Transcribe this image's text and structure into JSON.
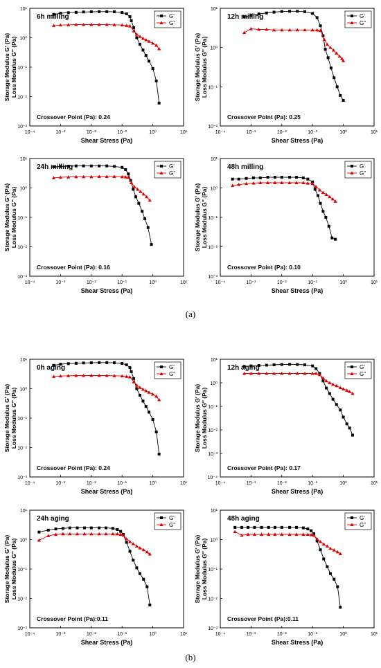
{
  "figure": {
    "caption_a": "(a)",
    "caption_b": "(b)"
  },
  "legend": {
    "g1": "G'",
    "g2": "G''"
  },
  "colors": {
    "storage": "#000000",
    "loss": "#e00000"
  },
  "chart_data": [
    {
      "type": "line",
      "xscale": "log",
      "yscale": "log",
      "title": "6h milling",
      "xlabel": "Shear Stress (Pa)",
      "ylabel": [
        "Storage Modulus G' (Pa)",
        "Loss Modulus G'' (Pa)"
      ],
      "xlim": [
        0.0001,
        10
      ],
      "ylim": [
        0.001,
        10
      ],
      "x_ticks": [
        "10⁻⁴",
        "10⁻³",
        "10⁻²",
        "10⁻¹",
        "10⁰",
        "10¹"
      ],
      "y_ticks": [
        "10⁻³",
        "10⁻²",
        "10⁻¹",
        "10⁰",
        "10¹"
      ],
      "annotation": "Crossover Point (Pa): 0.24",
      "legend_position": "top-right",
      "series": [
        {
          "name": "G'",
          "marker": "square",
          "x": [
            0.0006,
            0.001,
            0.0018,
            0.0032,
            0.0056,
            0.01,
            0.018,
            0.032,
            0.056,
            0.1,
            0.14,
            0.18,
            0.2,
            0.24,
            0.3,
            0.38,
            0.48,
            0.6,
            0.75,
            1.0,
            1.3,
            1.6
          ],
          "y": [
            6.2,
            6.8,
            7.1,
            7.3,
            7.5,
            7.6,
            7.7,
            7.7,
            7.6,
            7.2,
            6.5,
            5.2,
            3.8,
            2.2,
            1.0,
            0.6,
            0.38,
            0.25,
            0.16,
            0.09,
            0.034,
            0.006
          ]
        },
        {
          "name": "G''",
          "marker": "triangle",
          "x": [
            0.0006,
            0.001,
            0.0018,
            0.0032,
            0.0056,
            0.01,
            0.018,
            0.032,
            0.056,
            0.1,
            0.14,
            0.18,
            0.24,
            0.3,
            0.38,
            0.48,
            0.6,
            0.75,
            1.0,
            1.3,
            1.6
          ],
          "y": [
            2.6,
            2.7,
            2.75,
            2.8,
            2.8,
            2.8,
            2.8,
            2.8,
            2.75,
            2.7,
            2.6,
            2.5,
            1.7,
            1.3,
            1.1,
            0.95,
            0.85,
            0.75,
            0.65,
            0.55,
            0.42
          ]
        }
      ]
    },
    {
      "type": "line",
      "xscale": "log",
      "yscale": "log",
      "title": "12h milling",
      "xlabel": "Shear Stress (Pa)",
      "ylabel": [
        "Storage Modulus G' (Pa)",
        "Loss Modulus G'' (Pa)"
      ],
      "xlim": [
        0.0001,
        10
      ],
      "ylim": [
        0.01,
        10
      ],
      "x_ticks": [
        "10⁻⁴",
        "10⁻³",
        "10⁻²",
        "10⁻¹",
        "10⁰",
        "10¹"
      ],
      "y_ticks": [
        "10⁻²",
        "10⁻¹",
        "10⁰",
        "10¹"
      ],
      "annotation": "Crossover Point (Pa): 0.25",
      "legend_position": "top-right",
      "series": [
        {
          "name": "G'",
          "marker": "square",
          "x": [
            0.0006,
            0.001,
            0.0018,
            0.0032,
            0.0056,
            0.01,
            0.018,
            0.032,
            0.056,
            0.1,
            0.14,
            0.18,
            0.22,
            0.26,
            0.32,
            0.4,
            0.5,
            0.63,
            0.8,
            1.0
          ],
          "y": [
            6.0,
            6.6,
            7.2,
            7.6,
            8.0,
            8.3,
            8.4,
            8.4,
            8.2,
            7.4,
            5.8,
            3.6,
            2.0,
            0.9,
            0.55,
            0.3,
            0.17,
            0.1,
            0.06,
            0.045
          ]
        },
        {
          "name": "G''",
          "marker": "triangle",
          "x": [
            0.0006,
            0.001,
            0.0018,
            0.0032,
            0.0056,
            0.01,
            0.018,
            0.032,
            0.056,
            0.1,
            0.14,
            0.18,
            0.24,
            0.3,
            0.38,
            0.48,
            0.6,
            0.75,
            0.9,
            1.0
          ],
          "y": [
            2.4,
            3.0,
            2.9,
            2.9,
            2.8,
            2.8,
            2.8,
            2.8,
            2.8,
            2.8,
            2.8,
            2.7,
            1.6,
            1.2,
            1.0,
            0.85,
            0.72,
            0.6,
            0.52,
            0.46
          ]
        }
      ]
    },
    {
      "type": "line",
      "xscale": "log",
      "yscale": "log",
      "title": "24h milling",
      "xlabel": "Shear Stress (Pa)",
      "ylabel": [
        "Storage Modulus G' (Pa)",
        "Loss Modulus G'' (Pa)"
      ],
      "xlim": [
        0.0001,
        10
      ],
      "ylim": [
        0.001,
        10
      ],
      "x_ticks": [
        "10⁻⁴",
        "10⁻³",
        "10⁻²",
        "10⁻¹",
        "10⁰",
        "10¹"
      ],
      "y_ticks": [
        "10⁻³",
        "10⁻²",
        "10⁻¹",
        "10⁰",
        "10¹"
      ],
      "annotation": "Crossover Point (Pa): 0.16",
      "legend_position": "top-right",
      "series": [
        {
          "name": "G'",
          "marker": "square",
          "x": [
            0.0006,
            0.001,
            0.0018,
            0.0032,
            0.0056,
            0.01,
            0.018,
            0.032,
            0.056,
            0.1,
            0.13,
            0.16,
            0.19,
            0.23,
            0.28,
            0.35,
            0.45,
            0.55,
            0.7,
            0.9
          ],
          "y": [
            5.2,
            5.4,
            5.5,
            5.6,
            5.6,
            5.6,
            5.6,
            5.6,
            5.4,
            5.0,
            4.2,
            3.0,
            1.8,
            0.9,
            0.5,
            0.3,
            0.16,
            0.09,
            0.045,
            0.012
          ]
        },
        {
          "name": "G''",
          "marker": "triangle",
          "x": [
            0.0006,
            0.001,
            0.0018,
            0.0032,
            0.0056,
            0.01,
            0.018,
            0.032,
            0.056,
            0.1,
            0.13,
            0.16,
            0.2,
            0.25,
            0.32,
            0.4,
            0.5,
            0.63,
            0.8
          ],
          "y": [
            2.2,
            2.3,
            2.35,
            2.4,
            2.4,
            2.4,
            2.45,
            2.45,
            2.45,
            2.4,
            2.35,
            2.3,
            1.5,
            1.1,
            0.9,
            0.75,
            0.62,
            0.5,
            0.38
          ]
        }
      ]
    },
    {
      "type": "line",
      "xscale": "log",
      "yscale": "log",
      "title": "48h milling",
      "xlabel": "Shear Stress (Pa)",
      "ylabel": [
        "Storage Modulus G' (Pa)",
        "Loss Modulus G'' (Pa)"
      ],
      "xlim": [
        0.0001,
        10
      ],
      "ylim": [
        0.001,
        10
      ],
      "x_ticks": [
        "10⁻⁴",
        "10⁻³",
        "10⁻²",
        "10⁻¹",
        "10⁰",
        "10¹"
      ],
      "y_ticks": [
        "10⁻³",
        "10⁻²",
        "10⁻¹",
        "10⁰",
        "10¹"
      ],
      "annotation": "Crossover Point (Pa): 0.10",
      "legend_position": "top-right",
      "series": [
        {
          "name": "G'",
          "marker": "square",
          "x": [
            0.00025,
            0.0004,
            0.0007,
            0.0012,
            0.002,
            0.0035,
            0.006,
            0.01,
            0.018,
            0.03,
            0.05,
            0.07,
            0.1,
            0.12,
            0.15,
            0.18,
            0.22,
            0.27,
            0.34,
            0.43,
            0.55
          ],
          "y": [
            2.0,
            2.0,
            2.1,
            2.2,
            2.2,
            2.3,
            2.3,
            2.3,
            2.3,
            2.3,
            2.2,
            2.0,
            1.6,
            0.9,
            0.55,
            0.3,
            0.16,
            0.1,
            0.05,
            0.02,
            0.018
          ]
        },
        {
          "name": "G''",
          "marker": "triangle",
          "x": [
            0.00025,
            0.0004,
            0.0007,
            0.0012,
            0.002,
            0.0035,
            0.006,
            0.01,
            0.018,
            0.03,
            0.05,
            0.07,
            0.1,
            0.13,
            0.17,
            0.22,
            0.28,
            0.36,
            0.45,
            0.55
          ],
          "y": [
            1.2,
            1.3,
            1.4,
            1.45,
            1.5,
            1.5,
            1.5,
            1.5,
            1.5,
            1.5,
            1.5,
            1.45,
            1.4,
            1.1,
            0.85,
            0.7,
            0.6,
            0.5,
            0.42,
            0.35
          ]
        }
      ]
    },
    {
      "type": "line",
      "xscale": "log",
      "yscale": "log",
      "title": "0h aging",
      "xlabel": "Shear Stress (Pa)",
      "ylabel": [
        "Storage Modulus G' (Pa)",
        "Loss Modulus G'' (Pa)"
      ],
      "xlim": [
        0.0001,
        10
      ],
      "ylim": [
        0.001,
        10
      ],
      "x_ticks": [
        "10⁻⁴",
        "10⁻³",
        "10⁻²",
        "10⁻¹",
        "10⁰",
        "10¹"
      ],
      "y_ticks": [
        "10⁻³",
        "10⁻²",
        "10⁻¹",
        "10⁰",
        "10¹"
      ],
      "annotation": "Crossover Point (Pa): 0.24",
      "legend_position": "top-right",
      "series": [
        {
          "name": "G'",
          "marker": "square",
          "x": [
            0.0006,
            0.001,
            0.0018,
            0.0032,
            0.0056,
            0.01,
            0.018,
            0.032,
            0.056,
            0.1,
            0.14,
            0.18,
            0.2,
            0.24,
            0.3,
            0.38,
            0.48,
            0.6,
            0.75,
            1.0,
            1.3,
            1.6
          ],
          "y": [
            6.2,
            6.8,
            7.1,
            7.3,
            7.5,
            7.6,
            7.7,
            7.7,
            7.6,
            7.2,
            6.5,
            5.2,
            3.8,
            2.2,
            1.0,
            0.6,
            0.38,
            0.25,
            0.16,
            0.09,
            0.034,
            0.006
          ]
        },
        {
          "name": "G''",
          "marker": "triangle",
          "x": [
            0.0006,
            0.001,
            0.0018,
            0.0032,
            0.0056,
            0.01,
            0.018,
            0.032,
            0.056,
            0.1,
            0.14,
            0.18,
            0.24,
            0.3,
            0.38,
            0.48,
            0.6,
            0.75,
            1.0,
            1.3,
            1.6
          ],
          "y": [
            2.6,
            2.7,
            2.75,
            2.8,
            2.8,
            2.8,
            2.8,
            2.8,
            2.75,
            2.7,
            2.6,
            2.5,
            1.7,
            1.3,
            1.1,
            0.95,
            0.85,
            0.75,
            0.65,
            0.55,
            0.42
          ]
        }
      ]
    },
    {
      "type": "line",
      "xscale": "log",
      "yscale": "log",
      "title": "12h aging",
      "xlabel": "Shear Stress (Pa)",
      "ylabel": [
        "Storage Modulus G' (Pa)",
        "Loss Modulus G'' (Pa)"
      ],
      "xlim": [
        0.0001,
        10
      ],
      "ylim": [
        0.0001,
        10
      ],
      "x_ticks": [
        "10⁻⁴",
        "10⁻³",
        "10⁻²",
        "10⁻¹",
        "10⁰",
        "10¹"
      ],
      "y_ticks": [
        "10⁻⁴",
        "10⁻³",
        "10⁻²",
        "10⁻¹",
        "10⁰",
        "10¹"
      ],
      "annotation": "Crossover Point (Pa): 0.17",
      "legend_position": "top-right",
      "series": [
        {
          "name": "G'",
          "marker": "square",
          "x": [
            0.0006,
            0.001,
            0.0018,
            0.0032,
            0.0056,
            0.01,
            0.018,
            0.032,
            0.056,
            0.1,
            0.13,
            0.17,
            0.22,
            0.28,
            0.36,
            0.46,
            0.6,
            0.8,
            1.0,
            1.3,
            1.6,
            2.0
          ],
          "y": [
            5.0,
            5.2,
            5.4,
            5.6,
            5.8,
            6.0,
            6.1,
            6.0,
            5.8,
            5.2,
            4.0,
            2.5,
            1.2,
            0.6,
            0.35,
            0.2,
            0.12,
            0.07,
            0.035,
            0.018,
            0.012,
            0.006
          ]
        },
        {
          "name": "G''",
          "marker": "triangle",
          "x": [
            0.0006,
            0.001,
            0.0018,
            0.0032,
            0.0056,
            0.01,
            0.018,
            0.032,
            0.056,
            0.1,
            0.13,
            0.17,
            0.22,
            0.28,
            0.36,
            0.46,
            0.6,
            0.8,
            1.0,
            1.3,
            1.6,
            2.0
          ],
          "y": [
            2.5,
            2.5,
            2.5,
            2.5,
            2.5,
            2.5,
            2.5,
            2.5,
            2.5,
            2.5,
            2.5,
            2.2,
            1.6,
            1.2,
            1.0,
            0.85,
            0.75,
            0.62,
            0.55,
            0.48,
            0.42,
            0.35
          ]
        }
      ]
    },
    {
      "type": "line",
      "xscale": "log",
      "yscale": "log",
      "title": "24h aging",
      "xlabel": "Shear Stress (Pa)",
      "ylabel": [
        "Storage Modulus G' (Pa)",
        "Loss Modulus G'' (Pa)"
      ],
      "xlim": [
        0.0001,
        10
      ],
      "ylim": [
        0.001,
        10
      ],
      "x_ticks": [
        "10⁻⁴",
        "10⁻³",
        "10⁻²",
        "10⁻¹",
        "10⁰",
        "10¹"
      ],
      "y_ticks": [
        "10⁻³",
        "10⁻²",
        "10⁻¹",
        "10⁰",
        "10¹"
      ],
      "annotation": "Crossover Point (Pa):0.11",
      "legend_position": "top-right",
      "series": [
        {
          "name": "G'",
          "marker": "square",
          "x": [
            0.0002,
            0.0004,
            0.0007,
            0.0012,
            0.002,
            0.0035,
            0.006,
            0.01,
            0.018,
            0.03,
            0.05,
            0.07,
            0.09,
            0.11,
            0.14,
            0.18,
            0.23,
            0.3,
            0.38,
            0.5,
            0.65,
            0.8
          ],
          "y": [
            1.8,
            2.1,
            2.3,
            2.4,
            2.5,
            2.5,
            2.5,
            2.5,
            2.5,
            2.5,
            2.4,
            2.2,
            1.9,
            1.5,
            0.8,
            0.4,
            0.2,
            0.11,
            0.07,
            0.045,
            0.025,
            0.006
          ]
        },
        {
          "name": "G''",
          "marker": "triangle",
          "x": [
            0.0002,
            0.0004,
            0.0007,
            0.0012,
            0.002,
            0.0035,
            0.006,
            0.01,
            0.018,
            0.03,
            0.05,
            0.07,
            0.09,
            0.11,
            0.14,
            0.18,
            0.23,
            0.3,
            0.38,
            0.5,
            0.65,
            0.8
          ],
          "y": [
            0.95,
            1.35,
            1.5,
            1.55,
            1.55,
            1.55,
            1.55,
            1.55,
            1.55,
            1.55,
            1.55,
            1.55,
            1.5,
            1.4,
            1.05,
            0.85,
            0.72,
            0.6,
            0.52,
            0.45,
            0.38,
            0.32
          ]
        }
      ]
    },
    {
      "type": "line",
      "xscale": "log",
      "yscale": "log",
      "title": "48h aging",
      "xlabel": "Shear Stress (Pa)",
      "ylabel": [
        "Storage Modulus G' (Pa)",
        "Loss Modulus G'' (Pa)"
      ],
      "xlim": [
        0.0001,
        10
      ],
      "ylim": [
        0.001,
        10
      ],
      "x_ticks": [
        "10⁻⁴",
        "10⁻³",
        "10⁻²",
        "10⁻¹",
        "10⁰",
        "10¹"
      ],
      "y_ticks": [
        "10⁻³",
        "10⁻²",
        "10⁻¹",
        "10⁰",
        "10¹"
      ],
      "annotation": "Crossover Point (Pa):0.11",
      "legend_position": "top-right",
      "series": [
        {
          "name": "G'",
          "marker": "square",
          "x": [
            0.0003,
            0.0005,
            0.0008,
            0.0013,
            0.0022,
            0.0037,
            0.006,
            0.01,
            0.018,
            0.03,
            0.05,
            0.07,
            0.09,
            0.11,
            0.14,
            0.18,
            0.23,
            0.3,
            0.38,
            0.5,
            0.65,
            0.8
          ],
          "y": [
            2.6,
            2.6,
            2.6,
            2.6,
            2.6,
            2.6,
            2.6,
            2.6,
            2.6,
            2.6,
            2.5,
            2.3,
            2.0,
            1.6,
            0.9,
            0.45,
            0.22,
            0.12,
            0.07,
            0.045,
            0.025,
            0.005
          ]
        },
        {
          "name": "G''",
          "marker": "triangle",
          "x": [
            0.0003,
            0.0005,
            0.0008,
            0.0013,
            0.0022,
            0.0037,
            0.006,
            0.01,
            0.018,
            0.03,
            0.05,
            0.07,
            0.09,
            0.11,
            0.14,
            0.18,
            0.23,
            0.3,
            0.38,
            0.5,
            0.65,
            0.8
          ],
          "y": [
            1.85,
            1.4,
            1.5,
            1.5,
            1.5,
            1.5,
            1.5,
            1.5,
            1.5,
            1.5,
            1.5,
            1.5,
            1.45,
            1.4,
            1.05,
            0.85,
            0.7,
            0.6,
            0.5,
            0.44,
            0.38,
            0.33
          ]
        }
      ]
    }
  ]
}
